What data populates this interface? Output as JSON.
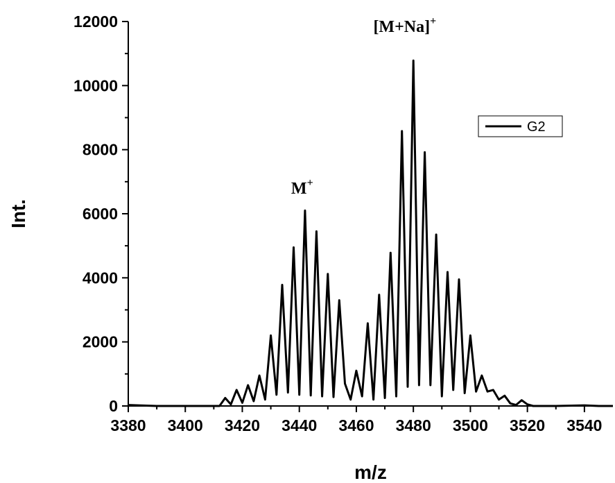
{
  "chart_data": {
    "type": "line",
    "xlabel": "m/z",
    "ylabel": "Int.",
    "xlim": [
      3380,
      3550
    ],
    "ylim": [
      0,
      12000
    ],
    "xticks": [
      3380,
      3400,
      3420,
      3440,
      3460,
      3480,
      3500,
      3520,
      3540
    ],
    "yticks": [
      0,
      2000,
      4000,
      6000,
      8000,
      10000,
      12000
    ],
    "grid": false,
    "legend_position": "top-right",
    "series": [
      {
        "name": "G2",
        "color": "#000000",
        "x": [
          3380,
          3390,
          3400,
          3412,
          3414,
          3416,
          3418,
          3420,
          3422,
          3424,
          3426,
          3428,
          3430,
          3432,
          3434,
          3436,
          3438,
          3440,
          3442,
          3444,
          3446,
          3448,
          3450,
          3452,
          3454,
          3456,
          3458,
          3460,
          3462,
          3464,
          3466,
          3468,
          3470,
          3472,
          3474,
          3476,
          3478,
          3480,
          3482,
          3484,
          3486,
          3488,
          3490,
          3492,
          3494,
          3496,
          3498,
          3500,
          3502,
          3504,
          3506,
          3508,
          3510,
          3512,
          3514,
          3516,
          3518,
          3520,
          3522,
          3526,
          3530,
          3540,
          3545,
          3550
        ],
        "y": [
          30,
          0,
          0,
          0,
          250,
          50,
          500,
          100,
          650,
          150,
          950,
          200,
          2200,
          350,
          3780,
          420,
          4950,
          350,
          6100,
          330,
          5450,
          300,
          4120,
          280,
          3300,
          700,
          200,
          1100,
          300,
          2580,
          200,
          3470,
          250,
          4780,
          300,
          8580,
          600,
          10780,
          650,
          7920,
          650,
          5350,
          300,
          4180,
          500,
          3950,
          400,
          2200,
          450,
          950,
          450,
          500,
          200,
          320,
          80,
          30,
          180,
          50,
          0,
          0,
          0,
          20,
          0,
          0
        ]
      }
    ],
    "annotations": [
      {
        "label": "M",
        "superscript": "+",
        "x": 3441,
        "y": 6150
      },
      {
        "label": "[M+Na]",
        "superscript": "+",
        "x": 3477,
        "y": 11200
      }
    ]
  }
}
